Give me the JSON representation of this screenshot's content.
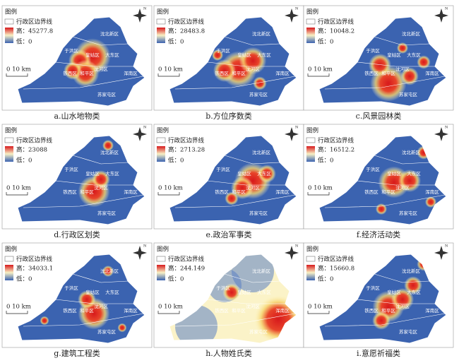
{
  "legend": {
    "title": "图例",
    "boundary": "行政区边界线",
    "scale": "0    10 km",
    "north": "N"
  },
  "districts": [
    "沈北新区",
    "于洪区",
    "皇姑区",
    "大东区",
    "铁西区",
    "和平区",
    "沈河区",
    "浑南区",
    "苏家屯区"
  ],
  "panels": [
    {
      "caption": "a.山水地物类",
      "high": "高：45277.8",
      "low": "低：0"
    },
    {
      "caption": "b.方位序数类",
      "high": "高：28483.8",
      "low": "低：0"
    },
    {
      "caption": "c.风景园林类",
      "high": "高：10048.2",
      "low": "低：0"
    },
    {
      "caption": "d.行政区划类",
      "high": "高：23088",
      "low": "低：0"
    },
    {
      "caption": "e.政治军事类",
      "high": "高：2713.28",
      "low": "低：0"
    },
    {
      "caption": "f.经济活动类",
      "high": "高：16512.2",
      "low": "低：0"
    },
    {
      "caption": "g.建筑工程类",
      "high": "高：34033.1",
      "low": "低：0"
    },
    {
      "caption": "h.人物姓氏类",
      "high": "高：244.149",
      "low": "低：0"
    },
    {
      "caption": "i.意愿祈福类",
      "high": "高：15660.8",
      "low": "低：0"
    }
  ]
}
